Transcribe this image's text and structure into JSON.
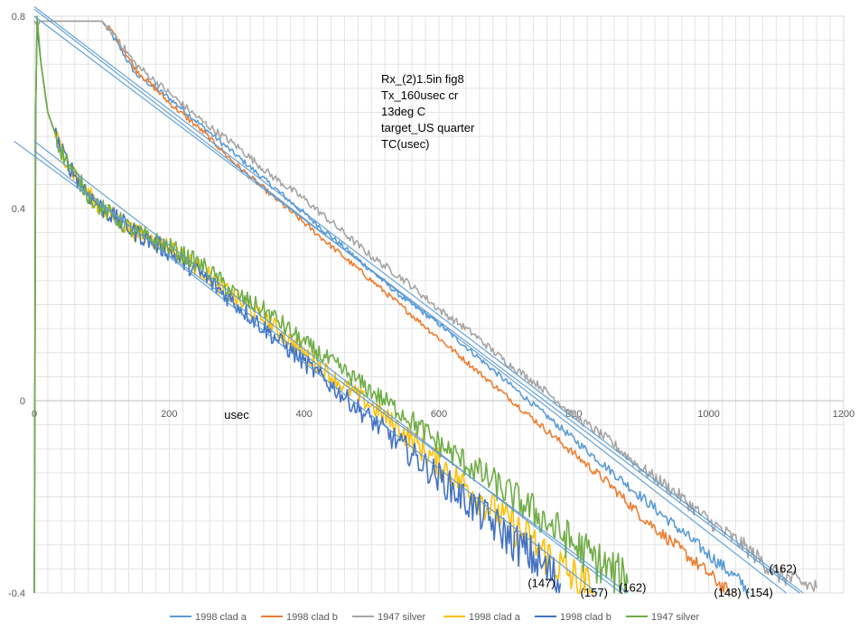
{
  "chart_data": {
    "type": "line",
    "title": "",
    "xlabel": "usec",
    "ylabel": "",
    "xlim": [
      0,
      1200
    ],
    "ylim": [
      -0.4,
      0.8
    ],
    "x_ticks": [
      0,
      200,
      400,
      600,
      800,
      1000,
      1200
    ],
    "y_ticks": [
      -0.4,
      0,
      0.4,
      0.8
    ],
    "x_tick_labels": [
      "0",
      "200",
      "400",
      "600",
      "800",
      "1000",
      "1200"
    ],
    "y_tick_labels": [
      "-0.4",
      "0",
      "0.4",
      "0.8"
    ],
    "grid": true,
    "legend_position": "bottom",
    "annotation_lines": [
      "Rx_(2)1.5in fig8",
      "Tx_160usec cr",
      "13deg C",
      "target_US quarter",
      "TC(usec)"
    ],
    "time_constant_labels": [
      {
        "text": "(147)",
        "x": 752,
        "y": -0.38
      },
      {
        "text": "(157)",
        "x": 830,
        "y": -0.4
      },
      {
        "text": "(162)",
        "x": 887,
        "y": -0.39
      },
      {
        "text": "(148)",
        "x": 1028,
        "y": -0.4
      },
      {
        "text": "(154)",
        "x": 1075,
        "y": -0.4
      },
      {
        "text": "(162)",
        "x": 1110,
        "y": -0.35
      }
    ],
    "series": [
      {
        "name": "1998 clad a",
        "color": "#5B9BD5",
        "x": [
          0,
          5,
          8,
          100,
          120,
          150,
          200,
          250,
          300,
          350,
          400,
          450,
          500,
          550,
          600,
          650,
          700,
          750,
          800,
          850,
          900,
          950,
          1000,
          1050,
          1060
        ],
        "y": [
          0.79,
          0.78,
          0.79,
          0.79,
          0.75,
          0.68,
          0.63,
          0.57,
          0.51,
          0.45,
          0.39,
          0.33,
          0.27,
          0.21,
          0.16,
          0.1,
          0.04,
          -0.02,
          -0.08,
          -0.14,
          -0.2,
          -0.26,
          -0.32,
          -0.38,
          -0.4
        ],
        "noise": 0.006
      },
      {
        "name": "1998 clad b",
        "color": "#ED7D31",
        "x": [
          0,
          5,
          8,
          100,
          120,
          150,
          200,
          250,
          300,
          350,
          400,
          450,
          500,
          550,
          600,
          650,
          700,
          750,
          800,
          850,
          900,
          950,
          1000,
          1030
        ],
        "y": [
          0.79,
          0.78,
          0.79,
          0.79,
          0.76,
          0.69,
          0.62,
          0.56,
          0.49,
          0.43,
          0.37,
          0.31,
          0.25,
          0.19,
          0.13,
          0.07,
          0.01,
          -0.05,
          -0.11,
          -0.17,
          -0.24,
          -0.3,
          -0.36,
          -0.4
        ],
        "noise": 0.006
      },
      {
        "name": "1947 silver",
        "color": "#A5A5A5",
        "x": [
          0,
          5,
          8,
          100,
          120,
          150,
          200,
          250,
          300,
          350,
          400,
          450,
          500,
          550,
          600,
          650,
          700,
          750,
          800,
          850,
          900,
          950,
          1000,
          1050,
          1100,
          1160
        ],
        "y": [
          0.79,
          0.78,
          0.79,
          0.79,
          0.76,
          0.7,
          0.64,
          0.58,
          0.53,
          0.47,
          0.42,
          0.36,
          0.3,
          0.25,
          0.19,
          0.14,
          0.08,
          0.03,
          -0.03,
          -0.08,
          -0.14,
          -0.19,
          -0.25,
          -0.3,
          -0.36,
          -0.39
        ],
        "noise": 0.008
      },
      {
        "name": "1998 clad a",
        "color": "#FFC000",
        "x": [
          0,
          2,
          4,
          10,
          20,
          40,
          60,
          80,
          100,
          150,
          200,
          250,
          300,
          350,
          400,
          450,
          500,
          550,
          600,
          650,
          700,
          750,
          800,
          830
        ],
        "y": [
          -0.4,
          0.6,
          0.78,
          0.7,
          0.6,
          0.52,
          0.47,
          0.43,
          0.4,
          0.35,
          0.32,
          0.27,
          0.21,
          0.16,
          0.1,
          0.04,
          -0.01,
          -0.07,
          -0.13,
          -0.19,
          -0.25,
          -0.31,
          -0.37,
          -0.4
        ],
        "noise": 0.02
      },
      {
        "name": "1998 clad b",
        "color": "#4472C4",
        "x": [
          0,
          2,
          4,
          10,
          20,
          40,
          60,
          80,
          100,
          150,
          200,
          250,
          300,
          350,
          400,
          450,
          500,
          550,
          600,
          650,
          700,
          750,
          780
        ],
        "y": [
          -0.4,
          0.6,
          0.78,
          0.7,
          0.6,
          0.52,
          0.47,
          0.43,
          0.4,
          0.35,
          0.31,
          0.26,
          0.2,
          0.14,
          0.08,
          0.02,
          -0.04,
          -0.1,
          -0.16,
          -0.22,
          -0.28,
          -0.34,
          -0.38
        ],
        "noise": 0.02
      },
      {
        "name": "1947 silver",
        "color": "#70AD47",
        "x": [
          0,
          2,
          4,
          10,
          20,
          40,
          60,
          80,
          100,
          150,
          200,
          250,
          300,
          350,
          400,
          450,
          500,
          550,
          600,
          650,
          700,
          750,
          800,
          850,
          880
        ],
        "y": [
          -0.4,
          0.6,
          0.8,
          0.7,
          0.6,
          0.52,
          0.47,
          0.43,
          0.4,
          0.35,
          0.32,
          0.28,
          0.22,
          0.18,
          0.12,
          0.07,
          0.02,
          -0.03,
          -0.09,
          -0.14,
          -0.19,
          -0.24,
          -0.3,
          -0.35,
          -0.38
        ],
        "noise": 0.02
      }
    ],
    "fit_lines": [
      {
        "color": "#5B9BD5",
        "x": [
          0,
          1115
        ],
        "y": [
          0.815,
          -0.4
        ]
      },
      {
        "color": "#5B9BD5",
        "x": [
          0,
          1135
        ],
        "y": [
          0.8,
          -0.4
        ]
      },
      {
        "color": "#5B9BD5",
        "x": [
          0,
          1140
        ],
        "y": [
          0.82,
          -0.4
        ]
      },
      {
        "color": "#5B9BD5",
        "x": [
          0,
          835
        ],
        "y": [
          0.52,
          -0.4
        ]
      },
      {
        "color": "#5B9BD5",
        "x": [
          0,
          870
        ],
        "y": [
          0.54,
          -0.4
        ]
      },
      {
        "color": "#5B9BD5",
        "x": [
          -30,
          880
        ],
        "y": [
          0.54,
          -0.4
        ]
      }
    ],
    "legend": [
      {
        "label": "1998 clad a",
        "color": "#5B9BD5"
      },
      {
        "label": "1998 clad b",
        "color": "#ED7D31"
      },
      {
        "label": "1947 silver",
        "color": "#A5A5A5"
      },
      {
        "label": "1998 clad a",
        "color": "#FFC000"
      },
      {
        "label": "1998 clad b",
        "color": "#4472C4"
      },
      {
        "label": "1947 silver",
        "color": "#70AD47"
      }
    ]
  }
}
